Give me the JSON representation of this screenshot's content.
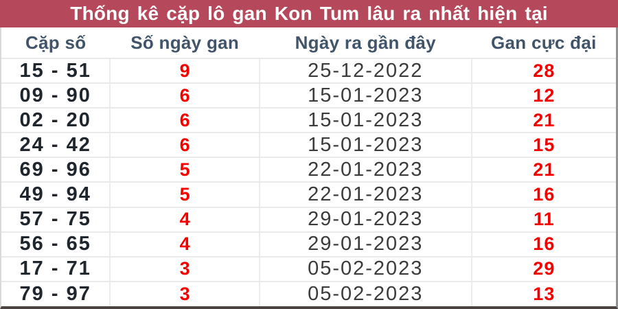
{
  "title": "Thống kê cặp lô gan Kon Tum lâu ra nhất hiện tại",
  "table": {
    "columns": [
      "Cặp số",
      "Số ngày gan",
      "Ngày ra gần đây",
      "Gan cực đại"
    ],
    "rows": [
      {
        "pair": "15 - 51",
        "days": "9",
        "last_date": "25-12-2022",
        "max": "28"
      },
      {
        "pair": "09 - 90",
        "days": "6",
        "last_date": "15-01-2023",
        "max": "12"
      },
      {
        "pair": "02 - 20",
        "days": "6",
        "last_date": "15-01-2023",
        "max": "21"
      },
      {
        "pair": "24 - 42",
        "days": "6",
        "last_date": "15-01-2023",
        "max": "15"
      },
      {
        "pair": "69 - 96",
        "days": "5",
        "last_date": "22-01-2023",
        "max": "21"
      },
      {
        "pair": "49 - 94",
        "days": "5",
        "last_date": "22-01-2023",
        "max": "16"
      },
      {
        "pair": "57 - 75",
        "days": "4",
        "last_date": "29-01-2023",
        "max": "11"
      },
      {
        "pair": "56 - 65",
        "days": "4",
        "last_date": "29-01-2023",
        "max": "16"
      },
      {
        "pair": "17 - 71",
        "days": "3",
        "last_date": "05-02-2023",
        "max": "29"
      },
      {
        "pair": "79 - 97",
        "days": "3",
        "last_date": "05-02-2023",
        "max": "13"
      }
    ]
  },
  "colors": {
    "title_bar_background": "#b5495b",
    "title_text": "#ffffff",
    "header_text": "#415469",
    "pair_text": "#20262d",
    "highlight_red": "#f40000",
    "date_text": "#3b3b3b",
    "grid_line": "#eaeaea",
    "bottom_border": "#4b4341",
    "right_border": "#929292"
  }
}
